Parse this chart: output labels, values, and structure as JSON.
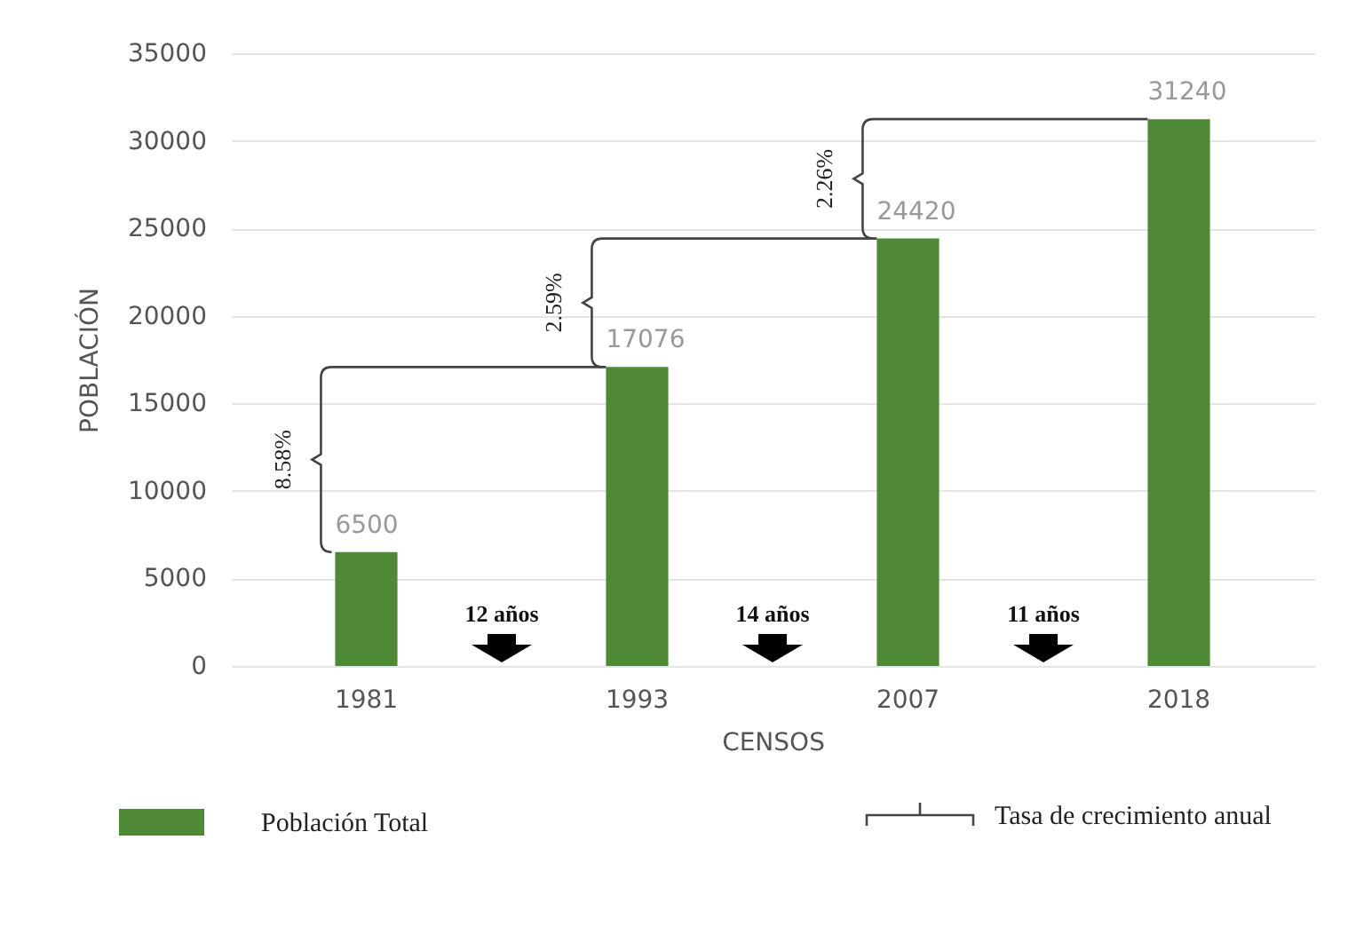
{
  "chart_data": {
    "type": "bar",
    "xlabel": "CENSOS",
    "ylabel": "POBLACIÓN",
    "categories": [
      "1981",
      "1993",
      "2007",
      "2018"
    ],
    "series": [
      {
        "name": "Población Total",
        "color": "#4e8a36",
        "values": [
          6500,
          17076,
          24420,
          31240
        ]
      }
    ],
    "ylim": [
      0,
      35000
    ],
    "yticks": [
      0,
      5000,
      10000,
      15000,
      20000,
      25000,
      30000,
      35000
    ],
    "grid": "y",
    "legend": "bottom",
    "data_labels": true,
    "annotations": [
      "8.58%",
      "2.59%",
      "2.26%",
      "12 años",
      "14 años",
      "11 años",
      "Tasa de crecimiento anual"
    ]
  }
}
